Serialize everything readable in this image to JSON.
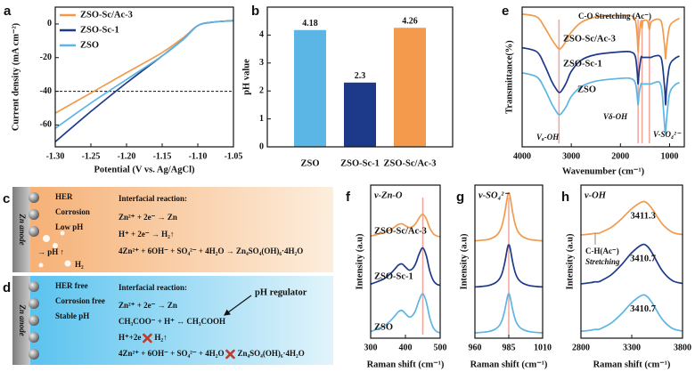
{
  "chart_data": [
    {
      "panel": "a",
      "type": "line",
      "x": [
        -1.3,
        -1.25,
        -1.2,
        -1.15,
        -1.12,
        -1.1,
        -1.08,
        -1.05
      ],
      "series": [
        {
          "name": "ZSO-Sc/Ac-3",
          "color": "#f39a4c",
          "values": [
            -53,
            -41,
            -29,
            -17,
            -8,
            -1,
            1,
            2
          ]
        },
        {
          "name": "ZSO-Sc-1",
          "color": "#1d3a8a",
          "values": [
            -70,
            -52,
            -35,
            -19,
            -9,
            -1,
            1,
            2
          ]
        },
        {
          "name": "ZSO",
          "color": "#5bb5e5",
          "values": [
            -62,
            -47,
            -33,
            -19,
            -9,
            -1,
            1,
            2
          ]
        }
      ],
      "xlim": [
        -1.3,
        -1.05
      ],
      "ylim": [
        -73,
        10
      ],
      "xticks": [
        {
          "value": -1.3,
          "label": "-1.30"
        },
        -1.25,
        {
          "value": -1.2,
          "label": "-1.20"
        },
        -1.15,
        {
          "value": -1.1,
          "label": "-1.10"
        },
        -1.05
      ],
      "yticks": [
        0,
        -20,
        -40,
        -60
      ],
      "xlabel": "Potential (V vs. Ag/AgCl)",
      "ylabel": "Current density (mA cm⁻²)",
      "reference_line": -40,
      "legend": "upper left"
    },
    {
      "panel": "b",
      "type": "bar",
      "categories": [
        "ZSO",
        "ZSO-Sc-1",
        "ZSO-Sc/Ac-3"
      ],
      "values": [
        4.18,
        2.3,
        4.26
      ],
      "colors": [
        "#5bb5e5",
        "#1d3a8a",
        "#f39a4c"
      ],
      "ylim": [
        0,
        5
      ],
      "yticks": [
        0,
        1,
        2,
        3,
        4
      ],
      "ylabel": "pH value"
    },
    {
      "panel": "e",
      "type": "line",
      "x": [
        4000,
        3700,
        3550,
        3400,
        3300,
        3250,
        3200,
        3100,
        3000,
        2800,
        2500,
        2000,
        1800,
        1700,
        1660,
        1640,
        1620,
        1580,
        1560,
        1540,
        1450,
        1410,
        1380,
        1300,
        1200,
        1150,
        1100,
        1080,
        1060,
        1000,
        900,
        800
      ],
      "series": [
        {
          "name": "ZSO-Sc/Ac-3",
          "color": "#f39a4c",
          "values": [
            9.5,
            9.3,
            8.6,
            7.7,
            7.2,
            7.0,
            7.1,
            7.6,
            8.2,
            8.9,
            9.3,
            9.4,
            9.4,
            9.1,
            8.0,
            6.8,
            7.9,
            9.0,
            8.5,
            9.0,
            9.0,
            8.4,
            8.9,
            9.1,
            9.1,
            8.7,
            7.2,
            6.3,
            7.2,
            8.6,
            9.0,
            9.2
          ]
        },
        {
          "name": "ZSO-Sc-1",
          "color": "#1d3a8a",
          "values": [
            7.1,
            6.8,
            5.9,
            4.7,
            4.1,
            3.9,
            4.0,
            4.6,
            5.4,
            6.2,
            6.6,
            6.8,
            6.8,
            6.5,
            5.4,
            4.5,
            5.4,
            6.4,
            6.4,
            6.4,
            6.4,
            6.4,
            6.4,
            6.5,
            6.5,
            6.0,
            4.2,
            3.0,
            4.2,
            5.8,
            6.3,
            6.5
          ]
        },
        {
          "name": "ZSO",
          "color": "#5bb5e5",
          "values": [
            5.3,
            5.0,
            4.2,
            3.1,
            2.5,
            2.3,
            2.4,
            2.9,
            3.6,
            4.3,
            4.7,
            4.9,
            4.9,
            4.6,
            3.7,
            3.0,
            3.8,
            4.5,
            4.5,
            4.5,
            4.5,
            4.5,
            4.5,
            4.6,
            4.6,
            3.8,
            1.5,
            1.0,
            2.0,
            3.8,
            4.4,
            4.6
          ]
        }
      ],
      "xlim": [
        4000,
        700
      ],
      "ylim": [
        0,
        10
      ],
      "xticks": [
        4000,
        3000,
        2000,
        1000
      ],
      "xlabel": "Wavenumber (cm⁻¹)",
      "ylabel": "Transmittance(%)",
      "highlight_x": [
        3250,
        1640,
        1560,
        1410
      ],
      "inline_labels": true,
      "annotations": [
        "C-O Stretching (Ac⁻)",
        "Vₐ-OH",
        "Vδ-OH",
        "V-SO₄²⁻"
      ]
    },
    {
      "panel": "f",
      "type": "line",
      "title": "v-Zn-O",
      "x": [
        300,
        320,
        340,
        360,
        370,
        380,
        390,
        400,
        410,
        420,
        430,
        440,
        450,
        460,
        470,
        480,
        490,
        500
      ],
      "series": [
        {
          "name": "ZSO-Sc/Ac-3",
          "color": "#f39a4c",
          "values": [
            6.68,
            6.78,
            6.9,
            7.13,
            7.28,
            7.43,
            7.47,
            7.35,
            7.23,
            7.28,
            7.5,
            7.88,
            8.1,
            7.8,
            7.2,
            6.83,
            6.68,
            6.63
          ]
        },
        {
          "name": "ZSO-Sc-1",
          "color": "#1d3a8a",
          "values": [
            3.53,
            3.7,
            3.9,
            4.28,
            4.53,
            4.78,
            4.85,
            4.65,
            4.45,
            4.53,
            4.9,
            5.53,
            5.9,
            5.4,
            4.4,
            3.78,
            3.53,
            3.45
          ]
        },
        {
          "name": "ZSO",
          "color": "#5bb5e5",
          "values": [
            0.43,
            0.61,
            0.82,
            1.21,
            1.47,
            1.73,
            1.81,
            1.6,
            1.39,
            1.47,
            1.86,
            2.51,
            2.9,
            2.38,
            1.34,
            0.69,
            0.43,
            0.35
          ]
        }
      ],
      "xlim": [
        300,
        500
      ],
      "ylim": [
        0,
        10
      ],
      "xticks": [
        300,
        400,
        500
      ],
      "xlabel": "Raman shift (cm⁻¹)",
      "ylabel": "Intensity (a.u)",
      "highlight_x": [
        450
      ],
      "inline_labels": true
    },
    {
      "panel": "g",
      "type": "line",
      "title": "v-SO₄²⁻",
      "x": [
        960,
        965,
        970,
        975,
        978,
        980,
        982,
        984,
        985,
        986,
        988,
        990,
        992,
        995,
        1000,
        1005,
        1010
      ],
      "series": [
        {
          "name": "ZSO-Sc/Ac-3",
          "color": "#f39a4c",
          "values": [
            6.36,
            6.4,
            6.46,
            6.65,
            6.94,
            7.36,
            8.16,
            9.24,
            9.5,
            9.24,
            8.16,
            7.36,
            6.94,
            6.65,
            6.46,
            6.4,
            6.36
          ]
        },
        {
          "name": "ZSO-Sc-1",
          "color": "#1d3a8a",
          "values": [
            3.35,
            3.38,
            3.44,
            3.61,
            3.86,
            4.22,
            4.92,
            5.88,
            6.1,
            5.88,
            4.92,
            4.22,
            3.86,
            3.61,
            3.44,
            3.38,
            3.35
          ]
        },
        {
          "name": "ZSO",
          "color": "#5bb5e5",
          "values": [
            0.35,
            0.38,
            0.43,
            0.59,
            0.82,
            1.16,
            1.81,
            2.69,
            2.9,
            2.69,
            1.81,
            1.16,
            0.82,
            0.59,
            0.43,
            0.38,
            0.35
          ]
        }
      ],
      "xlim": [
        960,
        1010
      ],
      "ylim": [
        0,
        10
      ],
      "xticks": [
        960,
        985,
        1010
      ],
      "xlabel": "Raman shift (cm⁻¹)",
      "ylabel": "Intensity (a.u)",
      "highlight_x": [
        985
      ]
    },
    {
      "panel": "h",
      "type": "line",
      "title": "v-OH",
      "x": [
        2800,
        2900,
        2935,
        2970,
        3000,
        3100,
        3200,
        3300,
        3400,
        3450,
        3500,
        3600,
        3700,
        3800
      ],
      "series": [
        {
          "name": "ZSO-Sc/Ac-3",
          "color": "#f39a4c",
          "values": [
            6.74,
            6.81,
            6.85,
            6.85,
            6.92,
            7.25,
            7.8,
            8.46,
            8.9,
            8.83,
            8.46,
            7.47,
            6.92,
            6.77
          ]
        },
        {
          "name": "ZSO-Sc-1",
          "color": "#1d3a8a",
          "values": [
            3.55,
            3.63,
            3.68,
            3.68,
            3.76,
            4.15,
            4.8,
            5.58,
            6.1,
            6.02,
            5.58,
            4.41,
            3.76,
            3.58
          ]
        },
        {
          "name": "ZSO",
          "color": "#5bb5e5",
          "values": [
            0.45,
            0.52,
            0.57,
            0.57,
            0.64,
            1.0,
            1.6,
            2.32,
            2.8,
            2.73,
            2.32,
            1.24,
            0.64,
            0.47
          ]
        }
      ],
      "xlim": [
        2800,
        3800
      ],
      "ylim": [
        0,
        10
      ],
      "xticks": [
        2800,
        3300,
        3800
      ],
      "xlabel": "Raman shift (cm⁻¹)",
      "ylabel": "Intensity (a.u)",
      "peaks": [
        3411.3,
        3410.7,
        3410.7
      ],
      "annotations": [
        "C-H(Ac⁻)",
        "Stretching"
      ]
    }
  ],
  "schematics": [
    {
      "panel": "c",
      "anode": "Zn anode",
      "states": [
        "HER",
        "Corrosion",
        "Low pH"
      ],
      "reaction_title": "Interfacial reaction:",
      "reactions": [
        "Zn²⁺ + 2e⁻ → Zn",
        "H⁺ + 2e⁻ → H₂↑",
        "4Zn²⁺ + 6OH⁻ + SO₄²⁻ + 4H₂O → Zn₄SO₄(OH)₆·4H₂O"
      ],
      "effects": [
        "→ pH ↑",
        "H₂"
      ]
    },
    {
      "panel": "d",
      "anode": "Zn anode",
      "states": [
        "HER free",
        "Corrosion free",
        "Stable pH"
      ],
      "reaction_title": "Interfacial reaction:",
      "reactions": [
        "Zn²⁺ + 2e⁻ → Zn",
        "CH₃COO⁻ + H⁺ ↔ CH₃COOH",
        [
          "H⁺+2e",
          "H₂↑"
        ],
        [
          "4Zn²⁺ + 6OH⁻ + SO₄²⁻ + 4H₂O",
          "Zn₄SO₄(OH)₆·4H₂O"
        ]
      ],
      "regulator": "pH regulator"
    }
  ]
}
